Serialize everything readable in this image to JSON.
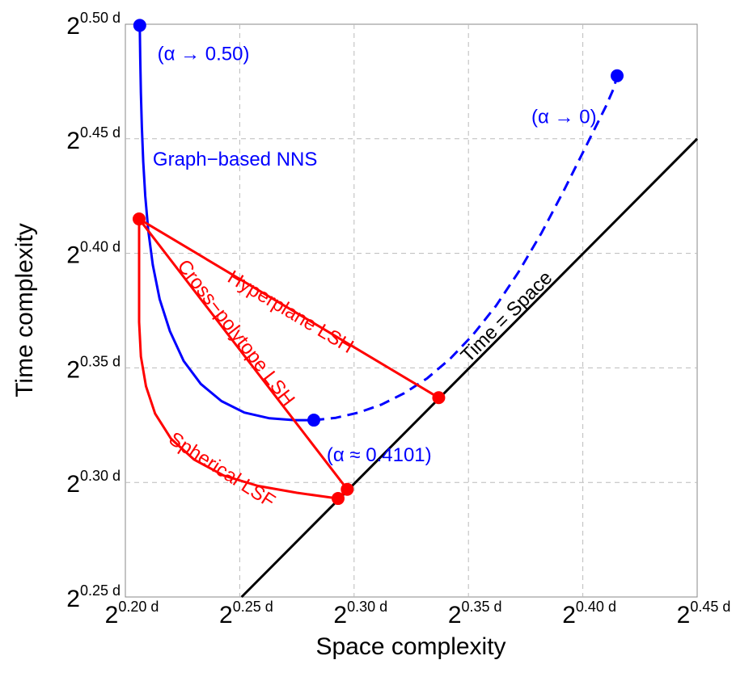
{
  "chart_data": {
    "type": "line",
    "xlabel": "Space complexity",
    "ylabel": "Time complexity",
    "xlim": [
      0.2,
      0.45
    ],
    "ylim": [
      0.25,
      0.5
    ],
    "grid": true,
    "x_ticks": [
      {
        "value": 0.2,
        "base": "2",
        "exp": "0.20 d"
      },
      {
        "value": 0.25,
        "base": "2",
        "exp": "0.25 d"
      },
      {
        "value": 0.3,
        "base": "2",
        "exp": "0.30 d"
      },
      {
        "value": 0.35,
        "base": "2",
        "exp": "0.35 d"
      },
      {
        "value": 0.4,
        "base": "2",
        "exp": "0.40 d"
      },
      {
        "value": 0.45,
        "base": "2",
        "exp": "0.45 d"
      }
    ],
    "y_ticks": [
      {
        "value": 0.25,
        "base": "2",
        "exp": "0.25 d"
      },
      {
        "value": 0.3,
        "base": "2",
        "exp": "0.30 d"
      },
      {
        "value": 0.35,
        "base": "2",
        "exp": "0.35 d"
      },
      {
        "value": 0.4,
        "base": "2",
        "exp": "0.40 d"
      },
      {
        "value": 0.45,
        "base": "2",
        "exp": "0.45 d"
      },
      {
        "value": 0.5,
        "base": "2",
        "exp": "0.50 d"
      }
    ],
    "colors": {
      "blue": "#0000ff",
      "red": "#ff0000",
      "black": "#000000",
      "grid": "#bbbbbb"
    },
    "series": [
      {
        "key": "time-space",
        "color": "#000000",
        "dash": false,
        "points": [
          [
            0.2508,
            0.25
          ],
          [
            0.45,
            0.45
          ]
        ]
      },
      {
        "key": "graph-solid",
        "color": "#0000ff",
        "dash": false,
        "points": [
          [
            0.2063,
            0.4995
          ],
          [
            0.2065,
            0.485
          ],
          [
            0.2068,
            0.47
          ],
          [
            0.2072,
            0.455
          ],
          [
            0.2078,
            0.44
          ],
          [
            0.2087,
            0.425
          ],
          [
            0.21,
            0.41
          ],
          [
            0.212,
            0.395
          ],
          [
            0.215,
            0.38
          ],
          [
            0.2195,
            0.366
          ],
          [
            0.2255,
            0.353
          ],
          [
            0.233,
            0.343
          ],
          [
            0.242,
            0.3355
          ],
          [
            0.252,
            0.3305
          ],
          [
            0.263,
            0.328
          ],
          [
            0.274,
            0.3272
          ],
          [
            0.2824,
            0.3272
          ]
        ]
      },
      {
        "key": "graph-dashed",
        "color": "#0000ff",
        "dash": true,
        "points": [
          [
            0.2824,
            0.3272
          ],
          [
            0.292,
            0.3282
          ],
          [
            0.302,
            0.3305
          ],
          [
            0.312,
            0.334
          ],
          [
            0.322,
            0.339
          ],
          [
            0.332,
            0.3455
          ],
          [
            0.342,
            0.354
          ],
          [
            0.352,
            0.3645
          ],
          [
            0.362,
            0.377
          ],
          [
            0.372,
            0.392
          ],
          [
            0.382,
            0.409
          ],
          [
            0.392,
            0.428
          ],
          [
            0.402,
            0.448
          ],
          [
            0.41,
            0.464
          ],
          [
            0.4135,
            0.472
          ],
          [
            0.415,
            0.4775
          ]
        ]
      },
      {
        "key": "hyperplane",
        "color": "#ff0000",
        "dash": false,
        "points": [
          [
            0.206,
            0.415
          ],
          [
            0.337,
            0.337
          ]
        ]
      },
      {
        "key": "cross-polytope",
        "color": "#ff0000",
        "dash": false,
        "points": [
          [
            0.206,
            0.415
          ],
          [
            0.297,
            0.297
          ]
        ]
      },
      {
        "key": "spherical-lsf",
        "color": "#ff0000",
        "dash": false,
        "points": [
          [
            0.206,
            0.415
          ],
          [
            0.206,
            0.37
          ],
          [
            0.2068,
            0.355
          ],
          [
            0.209,
            0.342
          ],
          [
            0.213,
            0.33
          ],
          [
            0.22,
            0.319
          ],
          [
            0.23,
            0.31
          ],
          [
            0.243,
            0.303
          ],
          [
            0.258,
            0.2985
          ],
          [
            0.275,
            0.2955
          ],
          [
            0.293,
            0.293
          ]
        ]
      },
      {
        "key": "lsf-to-cp",
        "color": "#ff0000",
        "dash": false,
        "points": [
          [
            0.293,
            0.293
          ],
          [
            0.297,
            0.297
          ]
        ]
      }
    ],
    "points": [
      {
        "x": 0.2063,
        "y": 0.4995,
        "color": "#0000ff"
      },
      {
        "x": 0.2824,
        "y": 0.3272,
        "color": "#0000ff"
      },
      {
        "x": 0.415,
        "y": 0.4775,
        "color": "#0000ff"
      },
      {
        "x": 0.206,
        "y": 0.415,
        "color": "#ff0000"
      },
      {
        "x": 0.337,
        "y": 0.337,
        "color": "#ff0000"
      },
      {
        "x": 0.297,
        "y": 0.297,
        "color": "#ff0000"
      },
      {
        "x": 0.293,
        "y": 0.293,
        "color": "#ff0000"
      }
    ],
    "annotations": [
      {
        "key": "alpha-050",
        "text": "(α → 0.50)",
        "x": 0.214,
        "y": 0.4865,
        "color": "#0000ff",
        "angle": 0,
        "anchor": "start"
      },
      {
        "key": "alpha-0",
        "text": "(α → 0)",
        "x": 0.406,
        "y": 0.459,
        "color": "#0000ff",
        "angle": 0,
        "anchor": "end"
      },
      {
        "key": "alpha-04101",
        "text": "(α ≈ 0.4101)",
        "x": 0.288,
        "y": 0.3115,
        "color": "#0000ff",
        "angle": 0,
        "anchor": "start"
      },
      {
        "key": "graph-nns",
        "text": "Graph−based NNS",
        "x": 0.212,
        "y": 0.4405,
        "color": "#0000ff",
        "angle": 0,
        "anchor": "start"
      },
      {
        "key": "hyperplane-lsh",
        "text": "Hyperplane LSH",
        "x": 0.272,
        "y": 0.374,
        "color": "#ff0000",
        "angle": 30.8,
        "anchor": "middle"
      },
      {
        "key": "cross-polytope-lsh",
        "text": "Cross−polytope LSH",
        "x": 0.248,
        "y": 0.365,
        "color": "#ff0000",
        "angle": 52.4,
        "anchor": "middle"
      },
      {
        "key": "spherical-lsf",
        "text": "Spherical LSF",
        "x": 0.242,
        "y": 0.305,
        "color": "#ff0000",
        "angle": 33,
        "anchor": "middle"
      },
      {
        "key": "time-space-label",
        "text": "Time = Space",
        "x": 0.367,
        "y": 0.372,
        "color": "#000000",
        "angle": -45,
        "anchor": "middle"
      }
    ]
  }
}
